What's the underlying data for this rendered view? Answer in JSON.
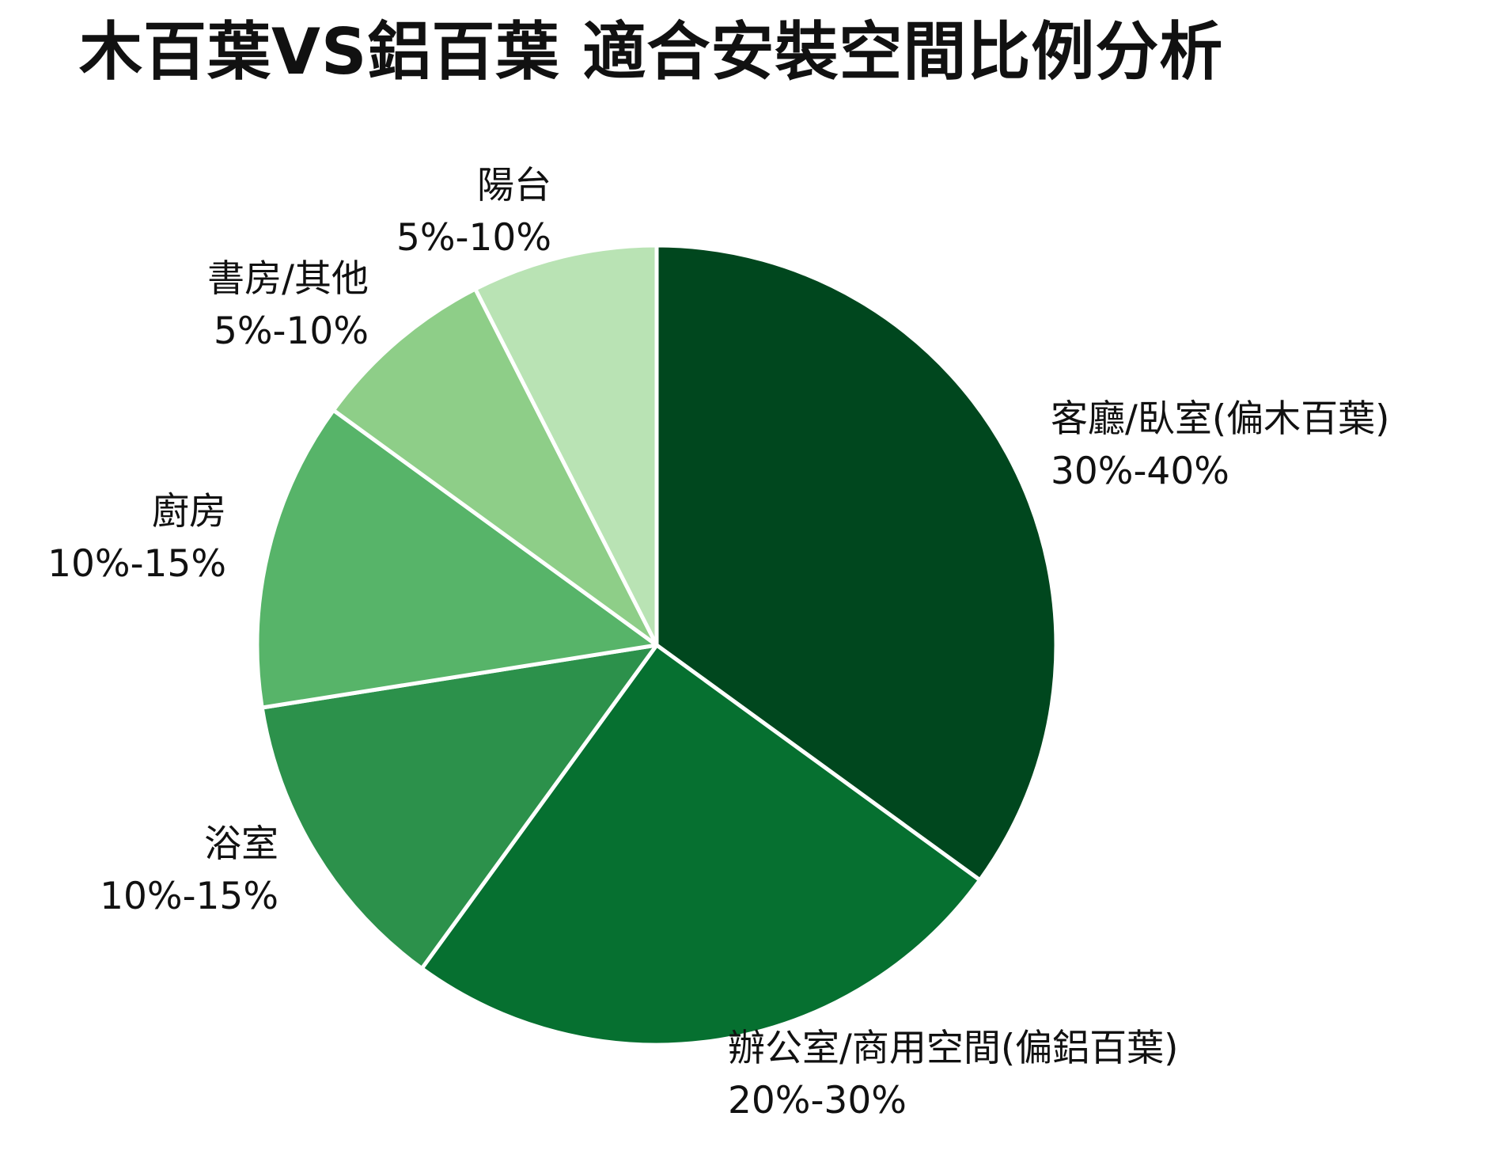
{
  "chart_data": {
    "type": "pie",
    "title": "木百葉VS鋁百葉 適合安裝空間比例分析",
    "legend": "none",
    "start_angle_deg": 0,
    "direction": "clockwise",
    "slices": [
      {
        "label": "客廳/臥室(偏木百葉)",
        "range_text": "30%-40%",
        "value": 35,
        "color": "#00471e"
      },
      {
        "label": "辦公室/商用空間(偏鋁百葉)",
        "range_text": "20%-30%",
        "value": 25,
        "color": "#067030"
      },
      {
        "label": "浴室",
        "range_text": "10%-15%",
        "value": 12.5,
        "color": "#2c914b"
      },
      {
        "label": "廚房",
        "range_text": "10%-15%",
        "value": 12.5,
        "color": "#57b469"
      },
      {
        "label": "書房/其他",
        "range_text": "5%-10%",
        "value": 7.5,
        "color": "#8ece88"
      },
      {
        "label": "陽台",
        "range_text": "5%-10%",
        "value": 7.5,
        "color": "#b9e3b4"
      }
    ]
  }
}
